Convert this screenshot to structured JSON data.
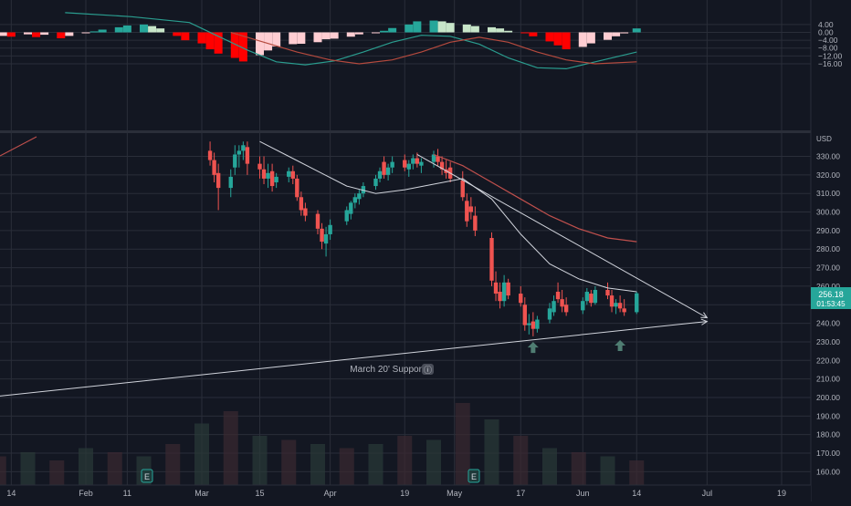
{
  "colors": {
    "background": "#131722",
    "grid": "#2a2e39",
    "up": "#26a69a",
    "down": "#ef5350",
    "macd_pos_strong": "#26a69a",
    "macd_pos_weak": "#c8e6c9",
    "macd_neg_strong": "#ff0000",
    "macd_neg_weak": "#ffcdd2",
    "macd_line": "#2a9d8f",
    "signal_line": "#b54a3e",
    "price_badge": "#26a69a",
    "trendline": "#d1d4dc"
  },
  "price_scale": {
    "currency_label": "USD",
    "tick_labels": [
      "330.00",
      "320.00",
      "310.00",
      "300.00",
      "290.00",
      "280.00",
      "270.00",
      "260.00",
      "250.00",
      "240.00",
      "230.00",
      "220.00",
      "210.00",
      "200.00",
      "190.00",
      "180.00",
      "170.00",
      "160.00"
    ]
  },
  "macd_scale": {
    "tick_labels": [
      "4.00",
      "0.00",
      "−4.00",
      "−8.00",
      "−12.00",
      "−16.00"
    ]
  },
  "time_axis": {
    "labels": [
      "14",
      "Feb",
      "11",
      "Mar",
      "15",
      "Apr",
      "19",
      "May",
      "17",
      "Jun",
      "14",
      "Jul",
      "19"
    ]
  },
  "price_badge": {
    "price": "256.18",
    "countdown": "01:53:45"
  },
  "annotations": {
    "support_label": "March 20' Support"
  },
  "earnings_markers": [
    "E",
    "E"
  ],
  "chart_data": [
    {
      "type": "candlestick",
      "title": "",
      "ylabel": "USD",
      "ylim": [
        155,
        338
      ],
      "sessions": [
        {
          "date": "Mar 3",
          "o": 333,
          "h": 338,
          "l": 325,
          "c": 328
        },
        {
          "date": "Mar 4",
          "o": 328,
          "h": 332,
          "l": 316,
          "c": 320
        },
        {
          "date": "Mar 5",
          "o": 321,
          "h": 326,
          "l": 301,
          "c": 313
        },
        {
          "date": "Mar 8",
          "o": 313,
          "h": 323,
          "l": 308,
          "c": 319
        },
        {
          "date": "Mar 9",
          "o": 324,
          "h": 336,
          "l": 320,
          "c": 331
        },
        {
          "date": "Mar 10",
          "o": 331,
          "h": 336,
          "l": 324,
          "c": 333
        },
        {
          "date": "Mar 11",
          "o": 333,
          "h": 338,
          "l": 328,
          "c": 336
        },
        {
          "date": "Mar 12",
          "o": 335,
          "h": 338,
          "l": 320,
          "c": 326
        },
        {
          "date": "Mar 15",
          "o": 326,
          "h": 330,
          "l": 318,
          "c": 323
        },
        {
          "date": "Mar 16",
          "o": 323,
          "h": 330,
          "l": 315,
          "c": 318
        },
        {
          "date": "Mar 17",
          "o": 318,
          "h": 326,
          "l": 313,
          "c": 321
        },
        {
          "date": "Mar 18",
          "o": 322,
          "h": 326,
          "l": 311,
          "c": 314
        },
        {
          "date": "Mar 19",
          "o": 316,
          "h": 321,
          "l": 313,
          "c": 319
        },
        {
          "date": "Mar 22",
          "o": 319,
          "h": 324,
          "l": 316,
          "c": 322
        },
        {
          "date": "Mar 23",
          "o": 322,
          "h": 325,
          "l": 315,
          "c": 318
        },
        {
          "date": "Mar 24",
          "o": 318,
          "h": 320,
          "l": 306,
          "c": 308
        },
        {
          "date": "Mar 25",
          "o": 308,
          "h": 311,
          "l": 298,
          "c": 301
        },
        {
          "date": "Mar 26",
          "o": 302,
          "h": 305,
          "l": 295,
          "c": 298
        },
        {
          "date": "Mar 29",
          "o": 299,
          "h": 301,
          "l": 288,
          "c": 291
        },
        {
          "date": "Mar 30",
          "o": 291,
          "h": 294,
          "l": 280,
          "c": 284
        },
        {
          "date": "Mar 31",
          "o": 283,
          "h": 292,
          "l": 276,
          "c": 288
        },
        {
          "date": "Apr 1",
          "o": 288,
          "h": 296,
          "l": 285,
          "c": 293
        },
        {
          "date": "Apr 5",
          "o": 295,
          "h": 303,
          "l": 293,
          "c": 301
        },
        {
          "date": "Apr 6",
          "o": 299,
          "h": 306,
          "l": 296,
          "c": 305
        },
        {
          "date": "Apr 7",
          "o": 305,
          "h": 310,
          "l": 302,
          "c": 308
        },
        {
          "date": "Apr 8",
          "o": 307,
          "h": 312,
          "l": 304,
          "c": 310
        },
        {
          "date": "Apr 9",
          "o": 310,
          "h": 316,
          "l": 308,
          "c": 314
        },
        {
          "date": "Apr 12",
          "o": 314,
          "h": 320,
          "l": 312,
          "c": 318
        },
        {
          "date": "Apr 13",
          "o": 318,
          "h": 324,
          "l": 316,
          "c": 322
        },
        {
          "date": "Apr 14",
          "o": 327,
          "h": 330,
          "l": 318,
          "c": 320
        },
        {
          "date": "Apr 15",
          "o": 320,
          "h": 326,
          "l": 317,
          "c": 324
        },
        {
          "date": "Apr 16",
          "o": 324,
          "h": 330,
          "l": 321,
          "c": 327
        },
        {
          "date": "Apr 19",
          "o": 328,
          "h": 331,
          "l": 322,
          "c": 324
        },
        {
          "date": "Apr 20",
          "o": 323,
          "h": 328,
          "l": 319,
          "c": 326
        },
        {
          "date": "Apr 21",
          "o": 326,
          "h": 331,
          "l": 323,
          "c": 329
        },
        {
          "date": "Apr 22",
          "o": 329,
          "h": 332,
          "l": 324,
          "c": 326
        },
        {
          "date": "Apr 23",
          "o": 325,
          "h": 329,
          "l": 321,
          "c": 327
        },
        {
          "date": "Apr 26",
          "o": 327,
          "h": 333,
          "l": 324,
          "c": 331
        },
        {
          "date": "Apr 27",
          "o": 330,
          "h": 334,
          "l": 325,
          "c": 327
        },
        {
          "date": "Apr 28",
          "o": 327,
          "h": 330,
          "l": 320,
          "c": 323
        },
        {
          "date": "Apr 29",
          "o": 323,
          "h": 328,
          "l": 318,
          "c": 321
        },
        {
          "date": "Apr 30",
          "o": 324,
          "h": 327,
          "l": 316,
          "c": 318
        },
        {
          "date": "May 3",
          "o": 317,
          "h": 322,
          "l": 306,
          "c": 308
        },
        {
          "date": "May 4",
          "o": 306,
          "h": 310,
          "l": 292,
          "c": 295
        },
        {
          "date": "May 5",
          "o": 303,
          "h": 308,
          "l": 296,
          "c": 300
        },
        {
          "date": "May 6",
          "o": 298,
          "h": 303,
          "l": 287,
          "c": 290
        },
        {
          "date": "May 10",
          "o": 286,
          "h": 289,
          "l": 260,
          "c": 263
        },
        {
          "date": "May 11",
          "o": 262,
          "h": 268,
          "l": 252,
          "c": 256
        },
        {
          "date": "May 12",
          "o": 257,
          "h": 262,
          "l": 248,
          "c": 252
        },
        {
          "date": "May 13",
          "o": 252,
          "h": 266,
          "l": 249,
          "c": 262
        },
        {
          "date": "May 14",
          "o": 262,
          "h": 264,
          "l": 253,
          "c": 255
        },
        {
          "date": "May 17",
          "o": 256,
          "h": 260,
          "l": 249,
          "c": 251
        },
        {
          "date": "May 18",
          "o": 250,
          "h": 254,
          "l": 236,
          "c": 239
        },
        {
          "date": "May 19",
          "o": 239,
          "h": 245,
          "l": 234,
          "c": 240
        },
        {
          "date": "May 20",
          "o": 241,
          "h": 246,
          "l": 233,
          "c": 237
        },
        {
          "date": "May 21",
          "o": 237,
          "h": 244,
          "l": 235,
          "c": 242
        },
        {
          "date": "May 24",
          "o": 242,
          "h": 251,
          "l": 240,
          "c": 248
        },
        {
          "date": "May 25",
          "o": 246,
          "h": 255,
          "l": 244,
          "c": 252
        },
        {
          "date": "May 26",
          "o": 257,
          "h": 262,
          "l": 251,
          "c": 253
        },
        {
          "date": "May 27",
          "o": 253,
          "h": 258,
          "l": 246,
          "c": 249
        },
        {
          "date": "May 28",
          "o": 250,
          "h": 254,
          "l": 244,
          "c": 246
        },
        {
          "date": "Jun 1",
          "o": 247,
          "h": 254,
          "l": 245,
          "c": 252
        },
        {
          "date": "Jun 2",
          "o": 252,
          "h": 259,
          "l": 250,
          "c": 257
        },
        {
          "date": "Jun 3",
          "o": 256,
          "h": 258,
          "l": 249,
          "c": 251
        },
        {
          "date": "Jun 4",
          "o": 251,
          "h": 260,
          "l": 250,
          "c": 258
        },
        {
          "date": "Jun 7",
          "o": 258,
          "h": 262,
          "l": 253,
          "c": 255
        },
        {
          "date": "Jun 8",
          "o": 255,
          "h": 258,
          "l": 246,
          "c": 249
        },
        {
          "date": "Jun 9",
          "o": 249,
          "h": 253,
          "l": 245,
          "c": 251
        },
        {
          "date": "Jun 10",
          "o": 251,
          "h": 255,
          "l": 246,
          "c": 248
        },
        {
          "date": "Jun 11",
          "o": 248,
          "h": 253,
          "l": 244,
          "c": 246
        },
        {
          "date": "Jun 14",
          "o": 246,
          "h": 257,
          "l": 245,
          "c": 256.18
        }
      ],
      "moving_average_fast": [
        {
          "date": "Mar 15",
          "value": 338
        },
        {
          "date": "Mar 22",
          "value": 330
        },
        {
          "date": "Mar 29",
          "value": 322
        },
        {
          "date": "Apr 5",
          "value": 314
        },
        {
          "date": "Apr 12",
          "value": 310
        },
        {
          "date": "Apr 19",
          "value": 312
        },
        {
          "date": "Apr 26",
          "value": 315
        },
        {
          "date": "May 3",
          "value": 318
        },
        {
          "date": "May 10",
          "value": 307
        },
        {
          "date": "May 17",
          "value": 288
        },
        {
          "date": "May 24",
          "value": 272
        },
        {
          "date": "May 31",
          "value": 264
        },
        {
          "date": "Jun 7",
          "value": 259
        },
        {
          "date": "Jun 14",
          "value": 257
        }
      ],
      "moving_average_slow": [
        {
          "date": "Apr 26",
          "value": 331
        },
        {
          "date": "May 3",
          "value": 325
        },
        {
          "date": "May 10",
          "value": 316
        },
        {
          "date": "May 17",
          "value": 307
        },
        {
          "date": "May 24",
          "value": 298
        },
        {
          "date": "May 31",
          "value": 291
        },
        {
          "date": "Jun 7",
          "value": 286
        },
        {
          "date": "Jun 14",
          "value": 284
        }
      ],
      "trendlines": [
        {
          "name": "resistance",
          "from": {
            "date": "Apr 22",
            "value": 331
          },
          "to": {
            "date": "Jul 1",
            "value": 243
          }
        },
        {
          "name": "support",
          "from": {
            "date": "Jan 8",
            "value": 200
          },
          "to": {
            "date": "Jul 1",
            "value": 241
          }
        }
      ],
      "markers": [
        {
          "type": "arrow-up",
          "date": "May 20",
          "value": 226
        },
        {
          "type": "arrow-up",
          "date": "Jun 10",
          "value": 227
        }
      ]
    },
    {
      "type": "bar",
      "title": "",
      "name": "MACD histogram",
      "ylim": [
        -19,
        7
      ],
      "dates": [
        "Jan 6",
        "Jan 8",
        "Jan 12",
        "Jan 14",
        "Jan 18",
        "Jan 20",
        "Jan 22",
        "Jan 26",
        "Jan 28",
        "Feb 1",
        "Feb 3",
        "Feb 5",
        "Feb 9",
        "Feb 11",
        "Feb 15",
        "Feb 17",
        "Feb 19",
        "Feb 23",
        "Feb 25",
        "Mar 1",
        "Mar 3",
        "Mar 5",
        "Mar 9",
        "Mar 11",
        "Mar 15",
        "Mar 17",
        "Mar 19",
        "Mar 23",
        "Mar 25",
        "Mar 29",
        "Mar 31",
        "Apr 2",
        "Apr 6",
        "Apr 8",
        "Apr 12",
        "Apr 14",
        "Apr 16",
        "Apr 20",
        "Apr 22",
        "Apr 26",
        "Apr 28",
        "Apr 30",
        "May 4",
        "May 6",
        "May 10",
        "May 12",
        "May 14",
        "May 18",
        "May 20",
        "May 24",
        "May 26",
        "May 28",
        "Jun 1",
        "Jun 3",
        "Jun 7",
        "Jun 9",
        "Jun 11",
        "Jun 14"
      ],
      "values": [
        -1.5,
        -2.5,
        -1.8,
        -2.2,
        -1.0,
        -2.4,
        -1.2,
        -3.0,
        -1.8,
        -0.3,
        0.5,
        1.4,
        2.6,
        3.5,
        4.0,
        3.2,
        2.0,
        -1.8,
        -4.0,
        -5.6,
        -8.6,
        -10.8,
        -13.0,
        -14.8,
        -11.6,
        -9.2,
        -7.2,
        -6.0,
        -5.8,
        -5.0,
        -3.5,
        -3.2,
        -2.2,
        -1.0,
        -0.2,
        0.8,
        2.2,
        4.0,
        5.6,
        6.0,
        5.6,
        4.8,
        4.0,
        3.2,
        2.6,
        2.0,
        0.8,
        -0.2,
        -2.0,
        -4.6,
        -6.6,
        -8.6,
        -7.4,
        -5.6,
        -3.8,
        -2.0,
        -0.5,
        2.0
      ]
    },
    {
      "type": "line",
      "title": "",
      "name": "MACD line",
      "points": [
        {
          "date": "Jan 27",
          "value": 10.0
        },
        {
          "date": "Feb 12",
          "value": 8.0
        },
        {
          "date": "Feb 26",
          "value": 5.0
        },
        {
          "date": "Mar 5",
          "value": -2.0
        },
        {
          "date": "Mar 12",
          "value": -9.0
        },
        {
          "date": "Mar 19",
          "value": -15.0
        },
        {
          "date": "Mar 26",
          "value": -16.5
        },
        {
          "date": "Apr 2",
          "value": -14.5
        },
        {
          "date": "Apr 9",
          "value": -10.0
        },
        {
          "date": "Apr 16",
          "value": -5.0
        },
        {
          "date": "Apr 23",
          "value": -1.5
        },
        {
          "date": "Apr 30",
          "value": -2.0
        },
        {
          "date": "May 7",
          "value": -6.0
        },
        {
          "date": "May 14",
          "value": -13.0
        },
        {
          "date": "May 21",
          "value": -18.0
        },
        {
          "date": "May 28",
          "value": -18.5
        },
        {
          "date": "Jun 4",
          "value": -15.0
        },
        {
          "date": "Jun 14",
          "value": -10.0
        }
      ]
    },
    {
      "type": "line",
      "title": "",
      "name": "Signal line",
      "points": [
        {
          "date": "Mar 8",
          "value": 0.0
        },
        {
          "date": "Mar 16",
          "value": -5.0
        },
        {
          "date": "Mar 24",
          "value": -10.0
        },
        {
          "date": "Apr 1",
          "value": -14.0
        },
        {
          "date": "Apr 8",
          "value": -16.0
        },
        {
          "date": "Apr 16",
          "value": -14.0
        },
        {
          "date": "Apr 23",
          "value": -10.0
        },
        {
          "date": "Apr 30",
          "value": -5.0
        },
        {
          "date": "May 7",
          "value": -2.5
        },
        {
          "date": "May 14",
          "value": -5.0
        },
        {
          "date": "May 21",
          "value": -10.0
        },
        {
          "date": "May 28",
          "value": -14.0
        },
        {
          "date": "Jun 4",
          "value": -16.0
        },
        {
          "date": "Jun 14",
          "value": -15.0
        }
      ]
    },
    {
      "type": "bar",
      "title": "",
      "name": "Volume",
      "dates": [
        "Jan 6",
        "Jan 11",
        "Jan 18",
        "Jan 25",
        "Feb 1",
        "Feb 8",
        "Feb 15",
        "Feb 22",
        "Mar 1",
        "Mar 8",
        "Mar 15",
        "Mar 22",
        "Mar 29",
        "Apr 5",
        "Apr 12",
        "Apr 19",
        "Apr 26",
        "May 3",
        "May 10",
        "May 17",
        "May 24",
        "May 31",
        "Jun 7",
        "Jun 14"
      ],
      "relative_volume": [
        0.3,
        0.35,
        0.4,
        0.3,
        0.45,
        0.4,
        0.35,
        0.5,
        0.75,
        0.9,
        0.6,
        0.55,
        0.5,
        0.45,
        0.5,
        0.6,
        0.55,
        1.0,
        0.8,
        0.6,
        0.45,
        0.4,
        0.35,
        0.3
      ]
    }
  ]
}
